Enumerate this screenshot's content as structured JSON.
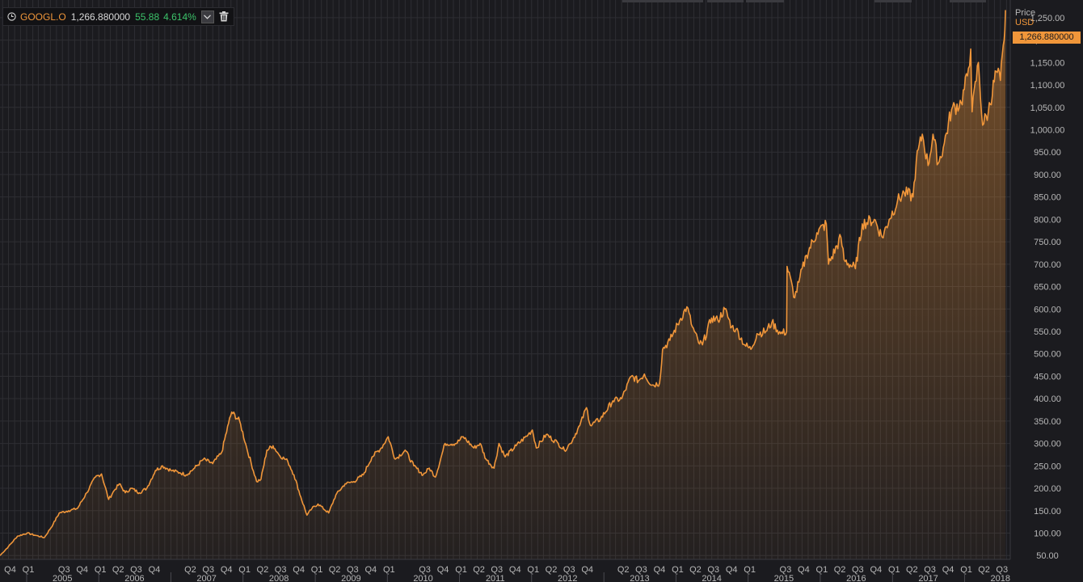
{
  "legend": {
    "symbol": "GOOGL.O",
    "last": "1,266.880000",
    "change": "55.88",
    "change_pct": "4.614%",
    "icons": [
      "clock-icon",
      "chevron-down-icon",
      "trash-icon"
    ],
    "colors": {
      "symbol": "#f0963a",
      "change": "#3cc36a"
    }
  },
  "axis_header": {
    "label": "Price",
    "currency": "USD"
  },
  "last_price_label": "1,266.880000",
  "chart_data": {
    "type": "area",
    "series": [
      {
        "name": "GOOGL.O",
        "color": "#f0963a",
        "points": [
          [
            "2004-08-19",
            50
          ],
          [
            "2004-10-01",
            70
          ],
          [
            "2004-11-15",
            93
          ],
          [
            "2005-01-03",
            100
          ],
          [
            "2005-02-15",
            95
          ],
          [
            "2005-04-01",
            90
          ],
          [
            "2005-05-15",
            120
          ],
          [
            "2005-06-15",
            145
          ],
          [
            "2005-08-01",
            150
          ],
          [
            "2005-09-15",
            155
          ],
          [
            "2005-11-01",
            190
          ],
          [
            "2005-12-15",
            225
          ],
          [
            "2006-01-15",
            232
          ],
          [
            "2006-02-20",
            175
          ],
          [
            "2006-03-20",
            195
          ],
          [
            "2006-04-15",
            210
          ],
          [
            "2006-05-15",
            190
          ],
          [
            "2006-06-15",
            200
          ],
          [
            "2006-07-25",
            190
          ],
          [
            "2006-09-01",
            200
          ],
          [
            "2006-10-15",
            240
          ],
          [
            "2006-11-20",
            250
          ],
          [
            "2007-01-01",
            240
          ],
          [
            "2007-02-15",
            235
          ],
          [
            "2007-03-20",
            230
          ],
          [
            "2007-05-01",
            245
          ],
          [
            "2007-06-15",
            265
          ],
          [
            "2007-08-01",
            255
          ],
          [
            "2007-09-15",
            280
          ],
          [
            "2007-10-20",
            345
          ],
          [
            "2007-11-05",
            370
          ],
          [
            "2007-12-15",
            350
          ],
          [
            "2008-01-20",
            290
          ],
          [
            "2008-03-10",
            215
          ],
          [
            "2008-04-01",
            220
          ],
          [
            "2008-05-01",
            285
          ],
          [
            "2008-06-01",
            295
          ],
          [
            "2008-07-01",
            275
          ],
          [
            "2008-08-15",
            260
          ],
          [
            "2008-09-15",
            230
          ],
          [
            "2008-10-20",
            180
          ],
          [
            "2008-11-20",
            140
          ],
          [
            "2008-12-15",
            155
          ],
          [
            "2009-01-15",
            165
          ],
          [
            "2009-03-10",
            145
          ],
          [
            "2009-04-15",
            185
          ],
          [
            "2009-06-01",
            210
          ],
          [
            "2009-07-15",
            215
          ],
          [
            "2009-09-01",
            230
          ],
          [
            "2009-10-15",
            270
          ],
          [
            "2009-12-01",
            290
          ],
          [
            "2010-01-05",
            315
          ],
          [
            "2010-02-10",
            265
          ],
          [
            "2010-04-01",
            285
          ],
          [
            "2010-05-15",
            250
          ],
          [
            "2010-07-01",
            230
          ],
          [
            "2010-08-01",
            245
          ],
          [
            "2010-09-01",
            225
          ],
          [
            "2010-10-20",
            300
          ],
          [
            "2010-12-15",
            300
          ],
          [
            "2011-01-20",
            315
          ],
          [
            "2011-03-15",
            290
          ],
          [
            "2011-04-15",
            300
          ],
          [
            "2011-05-15",
            265
          ],
          [
            "2011-06-25",
            245
          ],
          [
            "2011-07-20",
            300
          ],
          [
            "2011-08-20",
            270
          ],
          [
            "2011-10-15",
            295
          ],
          [
            "2011-12-15",
            320
          ],
          [
            "2012-01-05",
            330
          ],
          [
            "2012-01-25",
            290
          ],
          [
            "2012-03-15",
            320
          ],
          [
            "2012-05-15",
            300
          ],
          [
            "2012-06-15",
            285
          ],
          [
            "2012-07-15",
            300
          ],
          [
            "2012-09-01",
            340
          ],
          [
            "2012-10-05",
            380
          ],
          [
            "2012-10-25",
            340
          ],
          [
            "2012-12-15",
            355
          ],
          [
            "2013-02-15",
            395
          ],
          [
            "2013-04-01",
            400
          ],
          [
            "2013-05-20",
            450
          ],
          [
            "2013-06-25",
            440
          ],
          [
            "2013-07-25",
            455
          ],
          [
            "2013-09-01",
            430
          ],
          [
            "2013-10-10",
            435
          ],
          [
            "2013-10-25",
            510
          ],
          [
            "2013-12-01",
            530
          ],
          [
            "2014-01-20",
            575
          ],
          [
            "2014-02-25",
            605
          ],
          [
            "2014-03-25",
            560
          ],
          [
            "2014-04-25",
            525
          ],
          [
            "2014-05-15",
            520
          ],
          [
            "2014-06-30",
            580
          ],
          [
            "2014-08-01",
            575
          ],
          [
            "2014-09-05",
            600
          ],
          [
            "2014-10-10",
            560
          ],
          [
            "2014-11-01",
            555
          ],
          [
            "2014-12-15",
            520
          ],
          [
            "2015-01-15",
            510
          ],
          [
            "2015-02-15",
            545
          ],
          [
            "2015-04-01",
            550
          ],
          [
            "2015-05-01",
            570
          ],
          [
            "2015-06-15",
            545
          ],
          [
            "2015-07-15",
            550
          ],
          [
            "2015-07-17",
            695
          ],
          [
            "2015-08-25",
            625
          ],
          [
            "2015-09-15",
            660
          ],
          [
            "2015-10-23",
            720
          ],
          [
            "2015-12-15",
            770
          ],
          [
            "2016-02-01",
            790
          ],
          [
            "2016-02-12",
            700
          ],
          [
            "2016-04-15",
            760
          ],
          [
            "2016-05-01",
            710
          ],
          [
            "2016-06-27",
            690
          ],
          [
            "2016-08-01",
            790
          ],
          [
            "2016-10-01",
            800
          ],
          [
            "2016-11-10",
            760
          ],
          [
            "2016-12-15",
            800
          ],
          [
            "2017-01-26",
            840
          ],
          [
            "2017-03-01",
            860
          ],
          [
            "2017-04-15",
            850
          ],
          [
            "2017-05-01",
            930
          ],
          [
            "2017-06-01",
            990
          ],
          [
            "2017-06-30",
            920
          ],
          [
            "2017-07-25",
            990
          ],
          [
            "2017-08-20",
            925
          ],
          [
            "2017-09-15",
            960
          ],
          [
            "2017-10-27",
            1045
          ],
          [
            "2017-12-15",
            1060
          ],
          [
            "2018-01-15",
            1120
          ],
          [
            "2018-02-01",
            1180
          ],
          [
            "2018-02-08",
            1040
          ],
          [
            "2018-03-12",
            1150
          ],
          [
            "2018-04-02",
            1010
          ],
          [
            "2018-05-01",
            1040
          ],
          [
            "2018-06-10",
            1130
          ],
          [
            "2018-07-01",
            1110
          ],
          [
            "2018-07-20",
            1200
          ],
          [
            "2018-07-27",
            1266.88
          ]
        ]
      }
    ],
    "y_axis": {
      "label": "Price",
      "unit": "USD",
      "range": [
        45,
        1275
      ],
      "position": "right",
      "ticks": [
        "50.00",
        "100.00",
        "150.00",
        "200.00",
        "250.00",
        "300.00",
        "350.00",
        "400.00",
        "450.00",
        "500.00",
        "550.00",
        "600.00",
        "650.00",
        "700.00",
        "750.00",
        "800.00",
        "850.00",
        "900.00",
        "950.00",
        "1,000.00",
        "1,050.00",
        "1,100.00",
        "1,150.00",
        "1,200.00",
        "1,250.00"
      ]
    },
    "x_axis": {
      "range": [
        "2004-08-19",
        "2018-08-20"
      ],
      "quarters": [
        [
          "2004-10-01",
          "Q4"
        ],
        [
          "2005-01-01",
          "Q1"
        ],
        [
          "2005-07-01",
          "Q3"
        ],
        [
          "2005-10-01",
          "Q4"
        ],
        [
          "2006-01-01",
          "Q1"
        ],
        [
          "2006-04-01",
          "Q2"
        ],
        [
          "2006-07-01",
          "Q3"
        ],
        [
          "2006-10-01",
          "Q4"
        ],
        [
          "2007-04-01",
          "Q2"
        ],
        [
          "2007-07-01",
          "Q3"
        ],
        [
          "2007-10-01",
          "Q4"
        ],
        [
          "2008-01-01",
          "Q1"
        ],
        [
          "2008-04-01",
          "Q2"
        ],
        [
          "2008-07-01",
          "Q3"
        ],
        [
          "2008-10-01",
          "Q4"
        ],
        [
          "2009-01-01",
          "Q1"
        ],
        [
          "2009-04-01",
          "Q2"
        ],
        [
          "2009-07-01",
          "Q3"
        ],
        [
          "2009-10-01",
          "Q4"
        ],
        [
          "2010-01-01",
          "Q1"
        ],
        [
          "2010-07-01",
          "Q3"
        ],
        [
          "2010-10-01",
          "Q4"
        ],
        [
          "2011-01-01",
          "Q1"
        ],
        [
          "2011-04-01",
          "Q2"
        ],
        [
          "2011-07-01",
          "Q3"
        ],
        [
          "2011-10-01",
          "Q4"
        ],
        [
          "2012-01-01",
          "Q1"
        ],
        [
          "2012-04-01",
          "Q2"
        ],
        [
          "2012-07-01",
          "Q3"
        ],
        [
          "2012-10-01",
          "Q4"
        ],
        [
          "2013-04-01",
          "Q2"
        ],
        [
          "2013-07-01",
          "Q3"
        ],
        [
          "2013-10-01",
          "Q4"
        ],
        [
          "2014-01-01",
          "Q1"
        ],
        [
          "2014-04-01",
          "Q2"
        ],
        [
          "2014-07-01",
          "Q3"
        ],
        [
          "2014-10-01",
          "Q4"
        ],
        [
          "2015-01-01",
          "Q1"
        ],
        [
          "2015-07-01",
          "Q3"
        ],
        [
          "2015-10-01",
          "Q4"
        ],
        [
          "2016-01-01",
          "Q1"
        ],
        [
          "2016-04-01",
          "Q2"
        ],
        [
          "2016-07-01",
          "Q3"
        ],
        [
          "2016-10-01",
          "Q4"
        ],
        [
          "2017-01-01",
          "Q1"
        ],
        [
          "2017-04-01",
          "Q2"
        ],
        [
          "2017-07-01",
          "Q3"
        ],
        [
          "2017-10-01",
          "Q4"
        ],
        [
          "2018-01-01",
          "Q1"
        ],
        [
          "2018-04-01",
          "Q2"
        ],
        [
          "2018-07-01",
          "Q3"
        ]
      ],
      "years": [
        [
          "2005-07-01",
          "2005"
        ],
        [
          "2006-07-01",
          "2006"
        ],
        [
          "2007-07-01",
          "2007"
        ],
        [
          "2008-07-01",
          "2008"
        ],
        [
          "2009-07-01",
          "2009"
        ],
        [
          "2010-07-01",
          "2010"
        ],
        [
          "2011-07-01",
          "2011"
        ],
        [
          "2012-07-01",
          "2012"
        ],
        [
          "2013-07-01",
          "2013"
        ],
        [
          "2014-07-01",
          "2014"
        ],
        [
          "2015-07-01",
          "2015"
        ],
        [
          "2016-07-01",
          "2016"
        ],
        [
          "2017-07-01",
          "2017"
        ],
        [
          "2018-07-01",
          "2018"
        ]
      ]
    },
    "grid": true,
    "legend_position": "top-left",
    "colors": {
      "background": "#1b1b1f",
      "grid": "#2e2e33",
      "line": "#f0963a",
      "axis_text": "#b8b8b8"
    }
  }
}
